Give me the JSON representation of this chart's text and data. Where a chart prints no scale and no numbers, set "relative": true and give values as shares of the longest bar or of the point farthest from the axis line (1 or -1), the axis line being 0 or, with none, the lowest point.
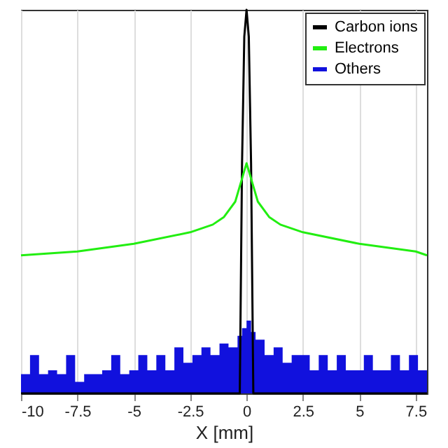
{
  "chart_data": {
    "type": "line",
    "xlabel": "X [mm]",
    "xlim": [
      -10,
      8
    ],
    "xticks": [
      -10,
      -7.5,
      -5,
      -2.5,
      0,
      2.5,
      5,
      7.5
    ],
    "relative": true,
    "grid": "x",
    "legend": "top right",
    "tick_labels": "x",
    "series": [
      {
        "name": "Carbon ions",
        "color": "#000000",
        "x": [
          -10,
          -0.3,
          -0.2,
          -0.1,
          0,
          0.1,
          0.2,
          0.3,
          8
        ],
        "values": [
          0,
          0,
          0.6,
          0.93,
          1,
          0.93,
          0.6,
          0,
          0
        ]
      },
      {
        "name": "Electrons",
        "color": "#22ee11",
        "x": [
          -10,
          -7.5,
          -5,
          -2.5,
          -1.5,
          -1,
          -0.5,
          -0.2,
          0,
          0.2,
          0.5,
          1,
          1.5,
          2.5,
          5,
          7.5,
          8
        ],
        "values": [
          0.36,
          0.37,
          0.39,
          0.42,
          0.44,
          0.46,
          0.5,
          0.56,
          0.6,
          0.56,
          0.5,
          0.46,
          0.44,
          0.42,
          0.39,
          0.37,
          0.36
        ]
      },
      {
        "name": "Others",
        "type": "area",
        "color": "#1111dd",
        "x": [
          -10,
          -9.6,
          -9.2,
          -8.8,
          -8.4,
          -8,
          -7.6,
          -7.2,
          -6.8,
          -6.4,
          -6,
          -5.6,
          -5.2,
          -4.8,
          -4.4,
          -4,
          -3.6,
          -3.2,
          -2.8,
          -2.4,
          -2,
          -1.6,
          -1.2,
          -0.8,
          -0.4,
          -0.2,
          0,
          0.2,
          0.4,
          0.8,
          1.2,
          1.6,
          2,
          2.4,
          2.8,
          3.2,
          3.6,
          4,
          4.4,
          4.8,
          5.2,
          5.6,
          6,
          6.4,
          6.8,
          7.2,
          7.6,
          8
        ],
        "values": [
          0.05,
          0.1,
          0.05,
          0.06,
          0.05,
          0.1,
          0.03,
          0.05,
          0.05,
          0.06,
          0.1,
          0.05,
          0.06,
          0.1,
          0.06,
          0.1,
          0.06,
          0.12,
          0.08,
          0.1,
          0.12,
          0.1,
          0.13,
          0.12,
          0.15,
          0.17,
          0.19,
          0.16,
          0.14,
          0.1,
          0.12,
          0.08,
          0.1,
          0.1,
          0.06,
          0.1,
          0.06,
          0.1,
          0.06,
          0.06,
          0.1,
          0.06,
          0.06,
          0.1,
          0.06,
          0.1,
          0.06,
          0.06
        ]
      }
    ]
  }
}
